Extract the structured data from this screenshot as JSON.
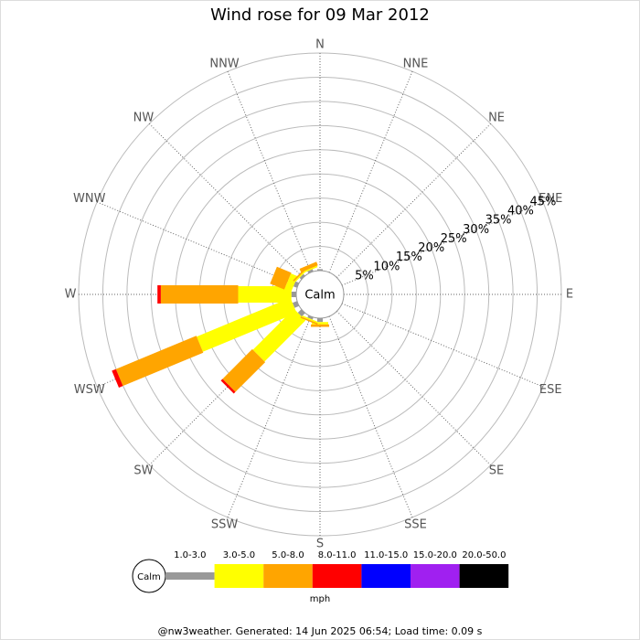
{
  "chart_data": {
    "type": "windrose",
    "title": "Wind rose for 09 Mar 2012",
    "calm_label": "Calm",
    "legend_title": "mph",
    "footer": "@nw3weather.  Generated: 14 Jun 2025 06:54; Load time: 0.09 s",
    "categories": [
      "N",
      "NNE",
      "NE",
      "ENE",
      "E",
      "ESE",
      "SE",
      "SSE",
      "S",
      "SSW",
      "SW",
      "WSW",
      "W",
      "WNW",
      "NW",
      "NNW"
    ],
    "rlim": [
      0,
      45
    ],
    "rticks": [
      {
        "value": 5,
        "label": "5%"
      },
      {
        "value": 10,
        "label": "10%"
      },
      {
        "value": 15,
        "label": "15%"
      },
      {
        "value": 20,
        "label": "20%"
      },
      {
        "value": 25,
        "label": "25%"
      },
      {
        "value": 30,
        "label": "30%"
      },
      {
        "value": 35,
        "label": "35%"
      },
      {
        "value": 40,
        "label": "40%"
      },
      {
        "value": 45,
        "label": "45%"
      }
    ],
    "series": [
      {
        "name": "1.0-3.0",
        "color": "#999999",
        "values": [
          0.3,
          0,
          0,
          0,
          0,
          0,
          0,
          0,
          0.8,
          0.5,
          1,
          1,
          1,
          0.8,
          0.5,
          0.5
        ]
      },
      {
        "name": "3.0-5.0",
        "color": "#ffff00",
        "values": [
          0,
          0,
          0,
          0,
          0,
          0,
          0,
          0,
          0.5,
          0.3,
          12,
          21,
          11,
          1.5,
          0.3,
          0.3
        ]
      },
      {
        "name": "5.0-8.0",
        "color": "#ffa500",
        "values": [
          0,
          0,
          0,
          0,
          0,
          0,
          0,
          0,
          0.5,
          0.3,
          8.7,
          18,
          16,
          3.2,
          0.3,
          0.8
        ]
      },
      {
        "name": "8.0-11.0",
        "color": "#ff0000",
        "values": [
          0,
          0,
          0,
          0,
          0,
          0,
          0,
          0,
          0,
          0,
          0.5,
          0.9,
          0.7,
          0,
          0,
          0
        ]
      },
      {
        "name": "11.0-15.0",
        "color": "#0000ff",
        "values": [
          0,
          0,
          0,
          0,
          0,
          0,
          0,
          0,
          0,
          0,
          0,
          0,
          0,
          0,
          0,
          0
        ]
      },
      {
        "name": "15.0-20.0",
        "color": "#a020f0",
        "values": [
          0,
          0,
          0,
          0,
          0,
          0,
          0,
          0,
          0,
          0,
          0,
          0,
          0,
          0,
          0,
          0
        ]
      },
      {
        "name": "20.0-50.0",
        "color": "#000000",
        "values": [
          0,
          0,
          0,
          0,
          0,
          0,
          0,
          0,
          0,
          0,
          0,
          0,
          0,
          0,
          0,
          0
        ]
      }
    ]
  }
}
